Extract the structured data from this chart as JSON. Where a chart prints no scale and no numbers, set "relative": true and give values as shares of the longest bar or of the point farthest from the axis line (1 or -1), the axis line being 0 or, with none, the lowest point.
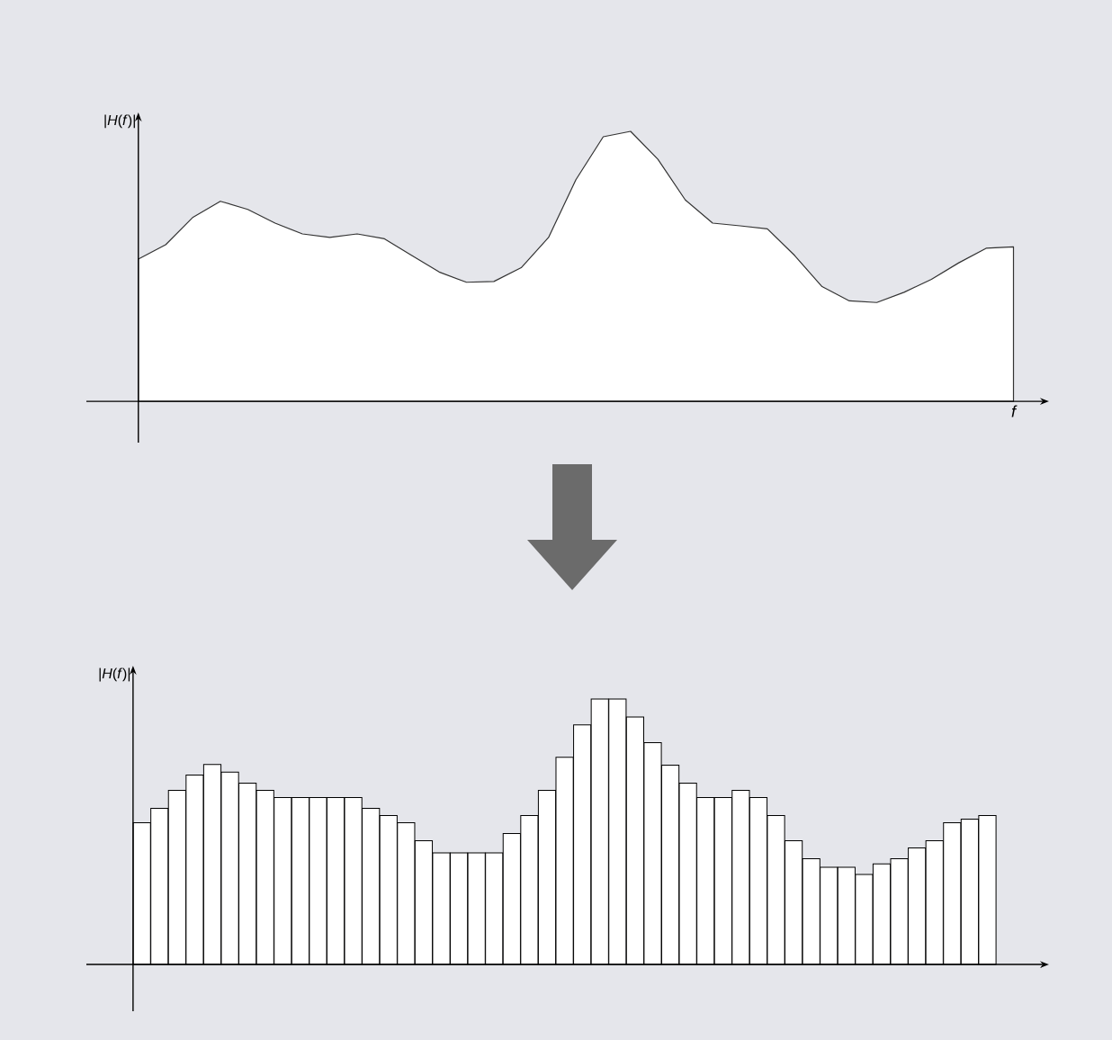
{
  "chart_data": [
    {
      "type": "area",
      "relative": true,
      "ylabel": "|*H*(*f*)|",
      "xlabel": "f",
      "color": "#333333",
      "categories": [
        null,
        null,
        null,
        null,
        null,
        null,
        null,
        null,
        null,
        null,
        null,
        null,
        null,
        null,
        null,
        null,
        null,
        null,
        null,
        null,
        null,
        null,
        null,
        null,
        null,
        null,
        null,
        null,
        null,
        null,
        null,
        null,
        null
      ],
      "values": [
        0.527,
        0.58,
        0.682,
        0.741,
        0.711,
        0.66,
        0.62,
        0.607,
        0.62,
        0.602,
        0.54,
        0.479,
        0.441,
        0.444,
        0.495,
        0.607,
        0.821,
        0.98,
        1,
        0.896,
        0.746,
        0.66,
        0.65,
        0.639,
        0.54,
        0.425,
        0.372,
        0.366,
        0.404,
        0.452,
        0.513,
        0.567,
        0.572
      ]
    },
    {
      "type": "bar",
      "relative": true,
      "ylabel": "|*H*(*f*)|",
      "color": "#ffffff",
      "categories": [
        null,
        null,
        null,
        null,
        null,
        null,
        null,
        null,
        null,
        null,
        null,
        null,
        null,
        null,
        null,
        null,
        null,
        null,
        null,
        null,
        null,
        null,
        null,
        null,
        null,
        null,
        null,
        null,
        null,
        null,
        null,
        null,
        null,
        null,
        null,
        null,
        null,
        null,
        null,
        null,
        null,
        null,
        null,
        null,
        null,
        null,
        null,
        null,
        null
      ],
      "values": [
        0.534,
        0.588,
        0.656,
        0.713,
        0.753,
        0.724,
        0.683,
        0.656,
        0.629,
        0.629,
        0.629,
        0.629,
        0.629,
        0.588,
        0.561,
        0.534,
        0.466,
        0.42,
        0.42,
        0.42,
        0.42,
        0.493,
        0.561,
        0.656,
        0.78,
        0.902,
        1,
        1,
        0.932,
        0.835,
        0.751,
        0.683,
        0.629,
        0.629,
        0.656,
        0.629,
        0.561,
        0.466,
        0.398,
        0.366,
        0.366,
        0.339,
        0.379,
        0.398,
        0.439,
        0.466,
        0.534,
        0.547,
        0.561
      ]
    }
  ]
}
